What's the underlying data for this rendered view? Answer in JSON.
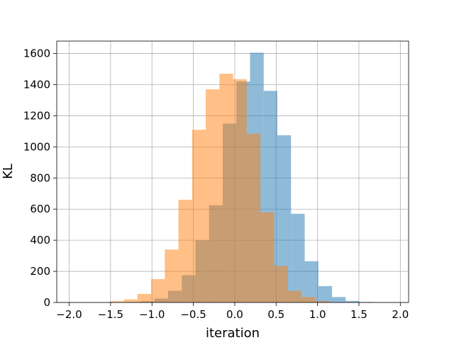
{
  "chart_data": {
    "type": "bar",
    "title": "",
    "xlabel": "iteration",
    "ylabel": "KL",
    "xlim": [
      -2.15,
      2.1
    ],
    "ylim": [
      0,
      1680
    ],
    "xticks": [
      -2.0,
      -1.5,
      -1.0,
      -0.5,
      0.0,
      0.5,
      1.0,
      1.5,
      2.0
    ],
    "xtick_labels": [
      "−2.0",
      "−1.5",
      "−1.0",
      "−0.5",
      "0.0",
      "0.5",
      "1.0",
      "1.5",
      "2.0"
    ],
    "yticks": [
      0,
      200,
      400,
      600,
      800,
      1000,
      1200,
      1400,
      1600
    ],
    "ytick_labels": [
      "0",
      "200",
      "400",
      "600",
      "800",
      "1000",
      "1200",
      "1400",
      "1600"
    ],
    "grid": true,
    "bin_width": 0.165,
    "series": [
      {
        "color": "#1f77b4",
        "opacity": 0.5,
        "bins": [
          [
            -1.3,
            3
          ],
          [
            -1.135,
            8
          ],
          [
            -0.97,
            25
          ],
          [
            -0.805,
            75
          ],
          [
            -0.64,
            175
          ],
          [
            -0.475,
            400
          ],
          [
            -0.31,
            625
          ],
          [
            -0.145,
            1150
          ],
          [
            0.02,
            1420
          ],
          [
            0.185,
            1605
          ],
          [
            0.35,
            1360
          ],
          [
            0.515,
            1075
          ],
          [
            0.68,
            570
          ],
          [
            0.845,
            265
          ],
          [
            1.01,
            105
          ],
          [
            1.175,
            35
          ],
          [
            1.34,
            10
          ],
          [
            1.505,
            3
          ],
          [
            1.67,
            1
          ],
          [
            1.835,
            1
          ]
        ]
      },
      {
        "color": "#ff7f0e",
        "opacity": 0.5,
        "bins": [
          [
            -2.0,
            1
          ],
          [
            -1.835,
            1
          ],
          [
            -1.67,
            2
          ],
          [
            -1.505,
            8
          ],
          [
            -1.34,
            20
          ],
          [
            -1.175,
            55
          ],
          [
            -1.01,
            150
          ],
          [
            -0.845,
            340
          ],
          [
            -0.68,
            660
          ],
          [
            -0.515,
            1110
          ],
          [
            -0.35,
            1370
          ],
          [
            -0.185,
            1470
          ],
          [
            -0.02,
            1435
          ],
          [
            0.145,
            1085
          ],
          [
            0.31,
            580
          ],
          [
            0.475,
            235
          ],
          [
            0.64,
            75
          ],
          [
            0.805,
            35
          ],
          [
            0.97,
            10
          ],
          [
            1.135,
            2
          ]
        ]
      }
    ]
  }
}
